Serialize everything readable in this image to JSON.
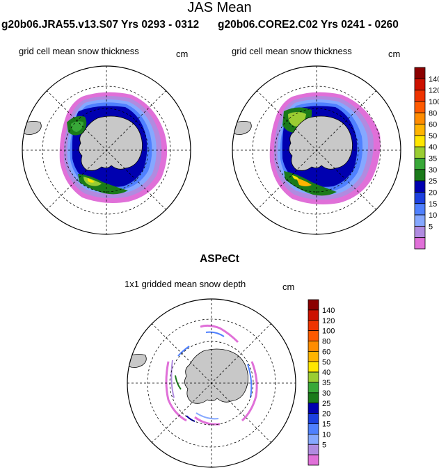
{
  "main_title": "JAS Mean",
  "top_row": {
    "left_case": "g20b06.JRA55.v13.S07  Yrs 0293 - 0312",
    "right_case": "g20b06.CORE2.C02  Yrs 0241 - 0260",
    "left_panel_title": "grid cell mean snow thickness",
    "right_panel_title": "grid cell mean snow thickness",
    "unit": "cm"
  },
  "bottom": {
    "title": "ASPeCt",
    "panel_title": "1x1 gridded mean snow depth",
    "unit": "cm"
  },
  "colorbar": {
    "levels": [
      "140",
      "120",
      "100",
      "80",
      "60",
      "50",
      "40",
      "35",
      "30",
      "25",
      "20",
      "15",
      "10",
      "5"
    ],
    "colors": [
      "#8b0000",
      "#cc1100",
      "#ee3300",
      "#ff5a00",
      "#ff8c00",
      "#ffb400",
      "#ffe600",
      "#9acd32",
      "#38a838",
      "#1a7a1a",
      "#0000b0",
      "#1c40e0",
      "#4f80ff",
      "#86a8ff",
      "#b08be0",
      "#e070d8"
    ]
  },
  "map_colors": {
    "land": "#c8c8c8",
    "ocean": "#ffffff"
  }
}
